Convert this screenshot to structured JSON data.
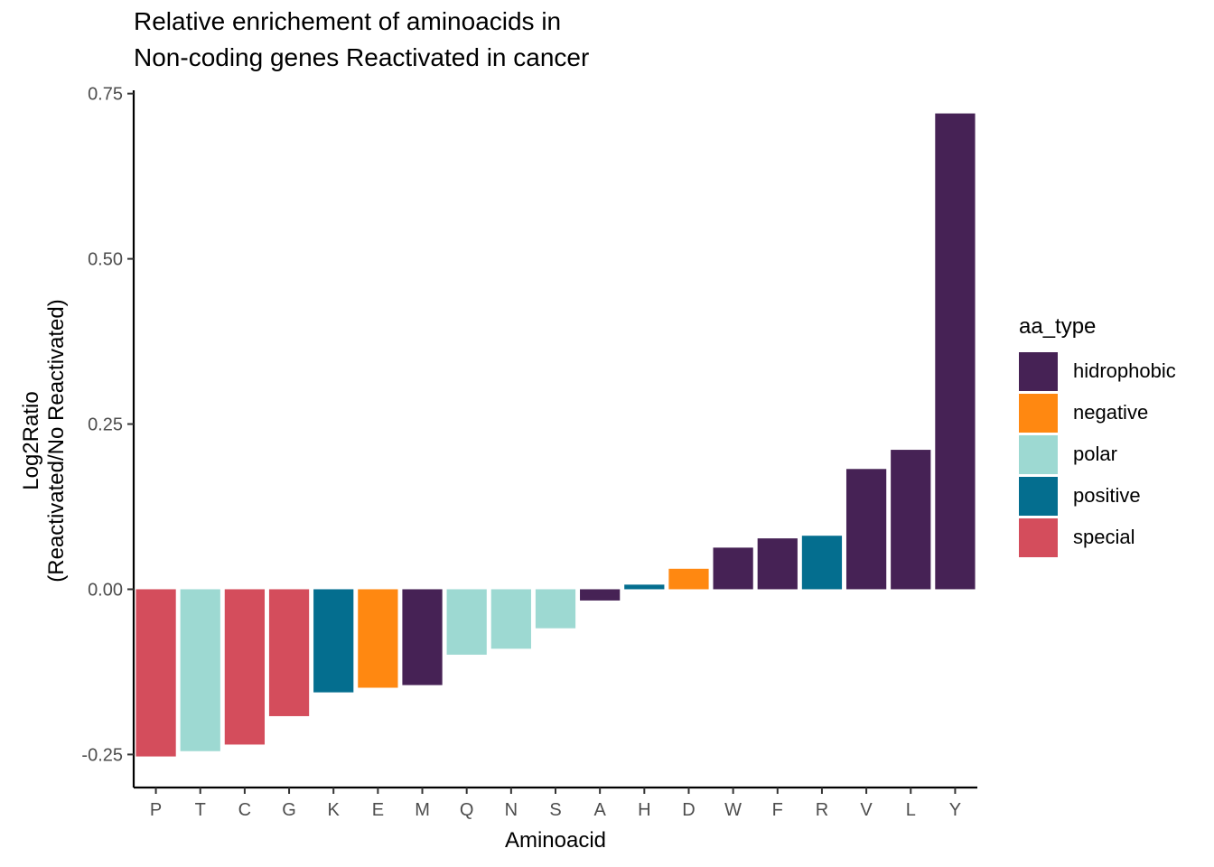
{
  "chart_data": {
    "type": "bar",
    "title": [
      "Relative enrichement of aminoacids in",
      "Non-coding genes Reactivated in cancer"
    ],
    "xlabel": "Aminoacid",
    "ylabel": [
      "Log2Ratio",
      "(Reactivated/No Reactivated)"
    ],
    "ylim": [
      -0.3,
      0.755
    ],
    "yticks": [
      -0.25,
      0.0,
      0.25,
      0.5,
      0.75
    ],
    "ytick_labels": [
      "-0.25",
      "0.00",
      "0.25",
      "0.50",
      "0.75"
    ],
    "categories": [
      "P",
      "T",
      "C",
      "G",
      "K",
      "E",
      "M",
      "Q",
      "N",
      "S",
      "A",
      "H",
      "D",
      "W",
      "F",
      "R",
      "V",
      "L",
      "Y"
    ],
    "values": [
      -0.253,
      -0.245,
      -0.235,
      -0.192,
      -0.156,
      -0.149,
      -0.145,
      -0.099,
      -0.09,
      -0.059,
      -0.017,
      0.007,
      0.031,
      0.063,
      0.077,
      0.081,
      0.182,
      0.211,
      0.72
    ],
    "types": [
      "special",
      "polar",
      "special",
      "special",
      "positive",
      "negative",
      "hidrophobic",
      "polar",
      "polar",
      "polar",
      "hidrophobic",
      "positive",
      "negative",
      "hidrophobic",
      "hidrophobic",
      "positive",
      "hidrophobic",
      "hidrophobic",
      "hidrophobic"
    ],
    "legend": {
      "title": "aa_type",
      "position": "right",
      "items": [
        {
          "name": "hidrophobic",
          "color": "#462255"
        },
        {
          "name": "negative",
          "color": "#FF8811"
        },
        {
          "name": "polar",
          "color": "#9DD9D2"
        },
        {
          "name": "positive",
          "color": "#046E8F"
        },
        {
          "name": "special",
          "color": "#D44D5C"
        }
      ]
    },
    "grid": false
  }
}
